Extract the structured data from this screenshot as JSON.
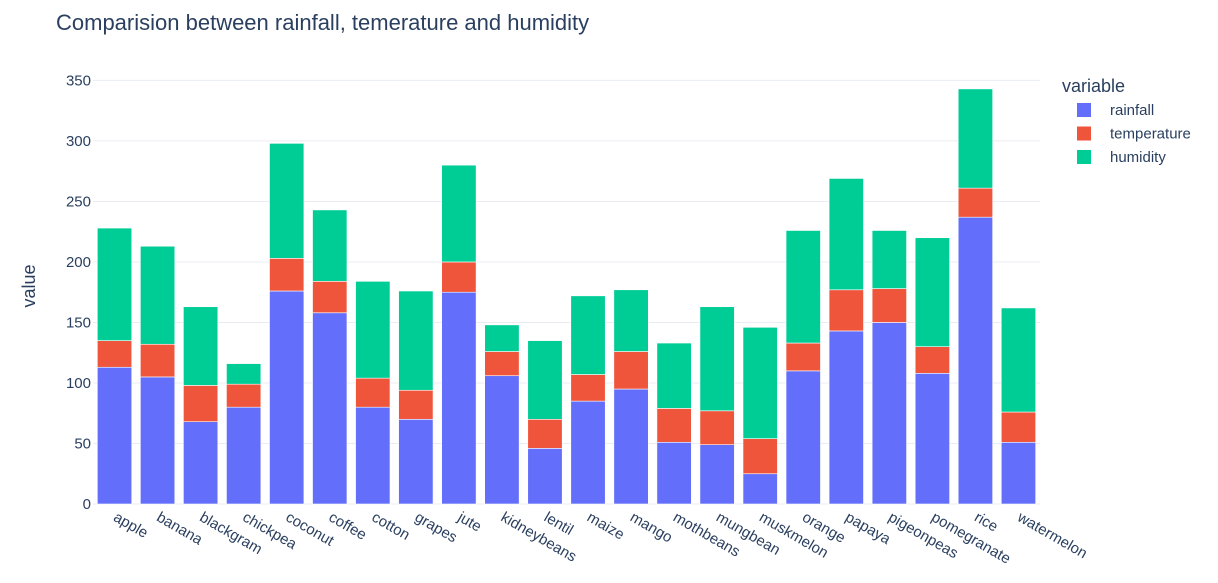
{
  "chart_data": {
    "type": "bar",
    "barmode": "stack",
    "title": "Comparision between rainfall, temerature and humidity",
    "xlabel": "",
    "ylabel": "value",
    "ylim": [
      0,
      350
    ],
    "yticks": [
      0,
      50,
      100,
      150,
      200,
      250,
      300,
      350
    ],
    "grid": true,
    "legend_title": "variable",
    "legend_position": "top-right",
    "categories": [
      "apple",
      "banana",
      "blackgram",
      "chickpea",
      "coconut",
      "coffee",
      "cotton",
      "grapes",
      "jute",
      "kidneybeans",
      "lentil",
      "maize",
      "mango",
      "mothbeans",
      "mungbean",
      "muskmelon",
      "orange",
      "papaya",
      "pigeonpeas",
      "pomegranate",
      "rice",
      "watermelon"
    ],
    "series": [
      {
        "name": "rainfall",
        "color": "#636efa",
        "values": [
          113,
          105,
          68,
          80,
          176,
          158,
          80,
          70,
          175,
          106,
          46,
          85,
          95,
          51,
          49,
          25,
          110,
          143,
          150,
          108,
          237,
          51
        ]
      },
      {
        "name": "temperature",
        "color": "#ef553b",
        "values": [
          22,
          27,
          30,
          19,
          27,
          26,
          24,
          24,
          25,
          20,
          24,
          22,
          31,
          28,
          28,
          29,
          23,
          34,
          28,
          22,
          24,
          25
        ]
      },
      {
        "name": "humidity",
        "color": "#00cc96",
        "values": [
          93,
          81,
          65,
          17,
          95,
          59,
          80,
          82,
          80,
          22,
          65,
          65,
          51,
          54,
          86,
          92,
          93,
          92,
          48,
          90,
          82,
          86
        ]
      }
    ]
  }
}
